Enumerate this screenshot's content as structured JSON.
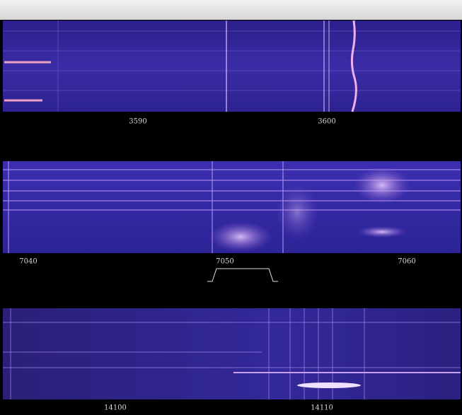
{
  "panels": [
    {
      "labels": [
        "3590",
        "3600"
      ]
    },
    {
      "labels": [
        "7040",
        "7050",
        "7060"
      ]
    },
    {
      "labels": [
        "14100",
        "14110"
      ]
    }
  ]
}
